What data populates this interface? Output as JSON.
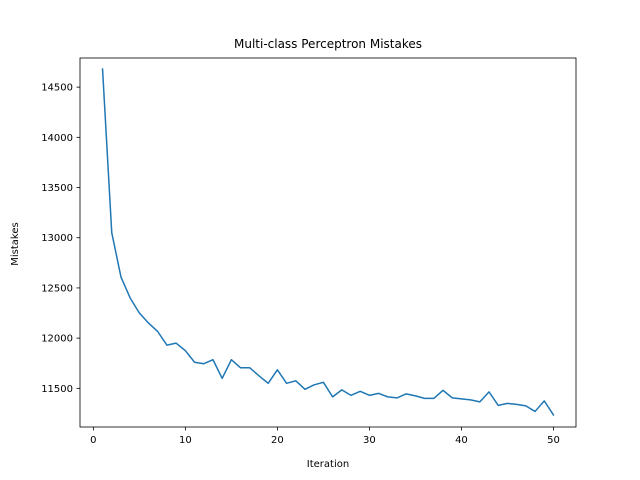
{
  "chart_data": {
    "type": "line",
    "title": "Multi-class Perceptron Mistakes",
    "xlabel": "Iteration",
    "ylabel": "Mistakes",
    "xlim": [
      -1.45,
      52.45
    ],
    "ylim": [
      11115,
      14790
    ],
    "xticks": [
      0,
      10,
      20,
      30,
      40,
      50
    ],
    "yticks": [
      11500,
      12000,
      12500,
      13000,
      13500,
      14000,
      14500
    ],
    "grid": false,
    "line_color": "#1f77b4",
    "series": [
      {
        "x": [
          1,
          2,
          3,
          4,
          5,
          6,
          7,
          8,
          9,
          10,
          11,
          12,
          13,
          14,
          15,
          16,
          17,
          18,
          19,
          20,
          21,
          22,
          23,
          24,
          25,
          26,
          27,
          28,
          29,
          30,
          31,
          32,
          33,
          34,
          35,
          36,
          37,
          38,
          39,
          40,
          41,
          42,
          43,
          44,
          45,
          46,
          47,
          48,
          49,
          50
        ],
        "values": [
          14680,
          13050,
          12610,
          12400,
          12250,
          12150,
          12065,
          11930,
          11950,
          11875,
          11760,
          11745,
          11785,
          11600,
          11785,
          11705,
          11705,
          11625,
          11550,
          11685,
          11550,
          11575,
          11490,
          11535,
          11560,
          11415,
          11485,
          11430,
          11470,
          11430,
          11450,
          11415,
          11405,
          11445,
          11425,
          11400,
          11400,
          11480,
          11405,
          11395,
          11385,
          11365,
          11465,
          11330,
          11350,
          11340,
          11325,
          11270,
          11375,
          11235
        ]
      }
    ]
  }
}
